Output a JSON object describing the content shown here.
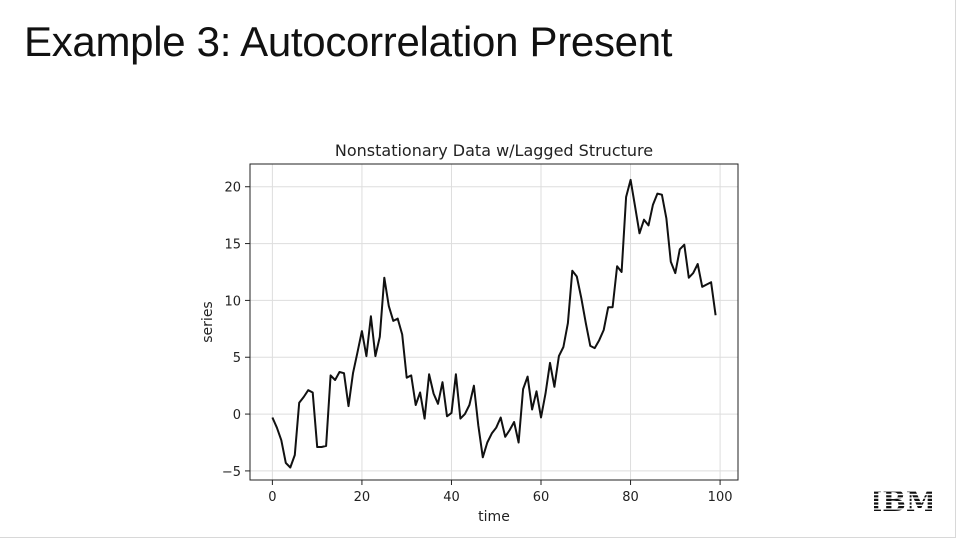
{
  "slide": {
    "title": "Example 3: Autocorrelation Present",
    "logo_text": "IBM"
  },
  "chart_data": {
    "type": "line",
    "title": "Nonstationary Data w/Lagged Structure",
    "xlabel": "time",
    "ylabel": "series",
    "xlim": [
      -5,
      104
    ],
    "ylim": [
      -5.8,
      22
    ],
    "xticks": [
      0,
      20,
      40,
      60,
      80,
      100
    ],
    "yticks": [
      -5,
      0,
      5,
      10,
      15,
      20
    ],
    "grid": true,
    "line_color": "#111111",
    "x": [
      0,
      1,
      2,
      3,
      4,
      5,
      6,
      7,
      8,
      9,
      10,
      11,
      12,
      13,
      14,
      15,
      16,
      17,
      18,
      19,
      20,
      21,
      22,
      23,
      24,
      25,
      26,
      27,
      28,
      29,
      30,
      31,
      32,
      33,
      34,
      35,
      36,
      37,
      38,
      39,
      40,
      41,
      42,
      43,
      44,
      45,
      46,
      47,
      48,
      49,
      50,
      51,
      52,
      53,
      54,
      55,
      56,
      57,
      58,
      59,
      60,
      61,
      62,
      63,
      64,
      65,
      66,
      67,
      68,
      69,
      70,
      71,
      72,
      73,
      74,
      75,
      76,
      77,
      78,
      79,
      80,
      81,
      82,
      83,
      84,
      85,
      86,
      87,
      88,
      89,
      90,
      91,
      92,
      93,
      94,
      95,
      96,
      97,
      98,
      99
    ],
    "y": [
      -0.3,
      -1.2,
      -2.3,
      -4.3,
      -4.7,
      -3.6,
      1.0,
      1.5,
      2.1,
      1.9,
      -2.9,
      -2.9,
      -2.8,
      3.4,
      3.0,
      3.7,
      3.6,
      0.7,
      3.6,
      5.4,
      7.3,
      5.1,
      8.6,
      5.1,
      6.8,
      12.0,
      9.5,
      8.2,
      8.4,
      7.0,
      3.2,
      3.4,
      0.8,
      1.9,
      -0.4,
      3.5,
      1.8,
      0.9,
      2.8,
      -0.2,
      0.1,
      3.5,
      -0.4,
      0.0,
      0.8,
      2.5,
      -1.0,
      -3.8,
      -2.5,
      -1.7,
      -1.2,
      -0.3,
      -2.0,
      -1.4,
      -0.7,
      -2.5,
      2.2,
      3.3,
      0.4,
      2.0,
      -0.3,
      1.8,
      4.5,
      2.4,
      5.1,
      5.9,
      8.0,
      12.6,
      12.1,
      10.2,
      8.0,
      6.0,
      5.8,
      6.5,
      7.4,
      9.4,
      9.4,
      13.0,
      12.5,
      19.1,
      20.6,
      18.3,
      15.9,
      17.1,
      16.6,
      18.4,
      19.4,
      19.3,
      17.2,
      13.4,
      12.4,
      14.5,
      14.9,
      12.0,
      12.4,
      13.2,
      11.2,
      11.4,
      11.6,
      8.7
    ]
  }
}
